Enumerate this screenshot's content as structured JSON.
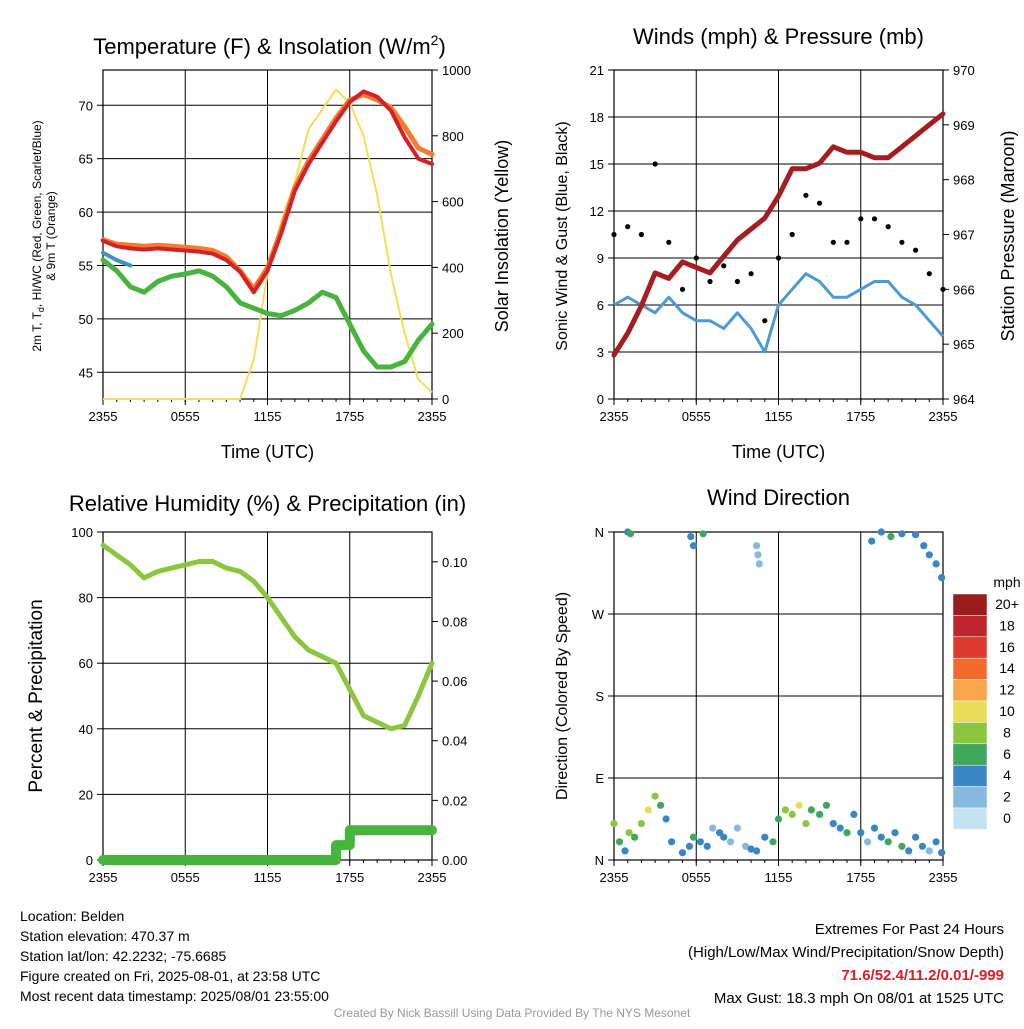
{
  "panels": {
    "temperature": {
      "title": "Temperature (F) & Insolation (W/m",
      "title_sup": "2",
      "title_close": ")",
      "ylabel_left_1": "2m T, T",
      "ylabel_left_sub": "d",
      "ylabel_left_2": ", HI/WC (Red, Green, Scarlet/Blue)",
      "ylabel_left_3": "& 9m T (Orange)",
      "ylabel_right": "Solar Insolation (Yellow)",
      "xlabel": "Time (UTC)",
      "xticks": [
        "2355",
        "0555",
        "1155",
        "1755",
        "2355"
      ],
      "yticks_left": [
        "45",
        "50",
        "55",
        "60",
        "65",
        "70"
      ],
      "yticks_right": [
        "0",
        "200",
        "400",
        "600",
        "800",
        "1000"
      ]
    },
    "winds": {
      "title": "Winds (mph) & Pressure (mb)",
      "ylabel_left": "Sonic Wind & Gust (Blue, Black)",
      "ylabel_right": "Station Pressure (Maroon)",
      "xlabel": "Time (UTC)",
      "xticks": [
        "2355",
        "0555",
        "1155",
        "1755",
        "2355"
      ],
      "yticks_left": [
        "0",
        "3",
        "6",
        "9",
        "12",
        "15",
        "18",
        "21"
      ],
      "yticks_right": [
        "964",
        "965",
        "966",
        "967",
        "968",
        "969",
        "970"
      ]
    },
    "humidity": {
      "title": "Relative Humidity (%) & Precipitation (in)",
      "ylabel_left": "Percent & Precipitation",
      "xticks": [
        "2355",
        "0555",
        "1155",
        "1755",
        "2355"
      ],
      "yticks_left": [
        "0",
        "20",
        "40",
        "60",
        "80",
        "100"
      ],
      "yticks_right": [
        "0.00",
        "0.02",
        "0.04",
        "0.06",
        "0.08",
        "0.10"
      ]
    },
    "direction": {
      "title": "Wind Direction",
      "ylabel_left": "Direction (Colored By Speed)",
      "xticks": [
        "2355",
        "0555",
        "1155",
        "1755",
        "2355"
      ],
      "yticks_left": [
        "N",
        "E",
        "S",
        "W",
        "N"
      ],
      "legend_title": "mph",
      "legend_labels": [
        "20+",
        "18",
        "16",
        "14",
        "12",
        "10",
        "8",
        "6",
        "4",
        "2",
        "0"
      ],
      "legend_colors": [
        "#9b1c1c",
        "#c0272d",
        "#de3a2f",
        "#f26b2d",
        "#f9a54a",
        "#e8de56",
        "#8cc63f",
        "#3fa85c",
        "#3a86c4",
        "#86b9e0",
        "#c4e2f4"
      ]
    }
  },
  "info": {
    "location": "Location: Belden",
    "elevation": "Station elevation: 470.37 m",
    "latlon": "Station lat/lon: 42.2232; -75.6685",
    "created": "Figure created on Fri, 2025-08-01, at 23:58 UTC",
    "recent": "Most recent data timestamp: 2025/08/01 23:55:00",
    "extremes_title": "Extremes For Past 24 Hours",
    "extremes_sub": "(High/Low/Max Wind/Precipitation/Snow Depth)",
    "extremes_values": "71.6/52.4/11.2/0.01/-999",
    "max_gust": "Max Gust: 18.3 mph On 08/01 at 1525 UTC",
    "credit": "Created By Nick Bassill Using Data Provided By The NYS Mesonet"
  },
  "colors": {
    "temp": "#d42027",
    "temp9m": "#f47c30",
    "dewpoint": "#46b43d",
    "windchill": "#4292c6",
    "solar": "#f6dd57",
    "wind": "#4a9ad4",
    "gust": "#000000",
    "pressure": "#a51d21",
    "rh": "#8cc63f",
    "precip": "#46b43d",
    "highlight": "#d42027"
  },
  "chart_data": [
    {
      "type": "line",
      "title": "Temperature (F) & Insolation (W/m2)",
      "xlabel": "Time (UTC)",
      "ylabel": "2m T, Td, HI/WC (Red, Green, Scarlet/Blue) & 9m T (Orange)",
      "ylabel_right": "Solar Insolation (Yellow)",
      "x": [
        0,
        1,
        2,
        3,
        4,
        5,
        6,
        7,
        8,
        9,
        10,
        11,
        12,
        13,
        14,
        15,
        16,
        17,
        18,
        19,
        20,
        21,
        22,
        23,
        24
      ],
      "xlim": [
        0,
        24
      ],
      "ylim": [
        42.5,
        73.3
      ],
      "ylim_right": [
        0,
        1000
      ],
      "series": [
        {
          "name": "2m T",
          "axis": "left",
          "values": [
            57.3,
            56.8,
            56.6,
            56.5,
            56.6,
            56.5,
            56.4,
            56.3,
            56.1,
            55.5,
            54.4,
            52.5,
            54.5,
            58.0,
            62.0,
            64.5,
            66.5,
            68.5,
            70.3,
            71.3,
            70.8,
            69.5,
            67.0,
            65.0,
            64.5
          ]
        },
        {
          "name": "9m T",
          "axis": "left",
          "values": [
            57.4,
            57.0,
            56.9,
            56.8,
            56.9,
            56.8,
            56.7,
            56.6,
            56.4,
            55.8,
            54.5,
            52.8,
            54.8,
            58.3,
            62.3,
            64.8,
            66.8,
            68.8,
            70.5,
            71.0,
            70.5,
            69.8,
            68.0,
            66.0,
            65.4
          ]
        },
        {
          "name": "Td",
          "axis": "left",
          "values": [
            55.5,
            54.5,
            53.0,
            52.5,
            53.5,
            54.0,
            54.2,
            54.5,
            54.0,
            53.0,
            51.5,
            51.0,
            50.5,
            50.3,
            50.8,
            51.5,
            52.5,
            52.0,
            49.5,
            47.0,
            45.5,
            45.5,
            46.0,
            48.0,
            49.5
          ]
        },
        {
          "name": "HI/WC",
          "axis": "left",
          "values": [
            56.2,
            55.5,
            55.0,
            null,
            55.3,
            null,
            null,
            null,
            null,
            null,
            null,
            52.0,
            null,
            null,
            null,
            null,
            null,
            null,
            null,
            null,
            null,
            null,
            null,
            null,
            null
          ]
        },
        {
          "name": "Solar Insolation",
          "axis": "right",
          "values": [
            0,
            0,
            0,
            0,
            0,
            0,
            0,
            0,
            0,
            0,
            0,
            120,
            380,
            540,
            660,
            820,
            880,
            940,
            900,
            800,
            620,
            380,
            200,
            60,
            20
          ]
        }
      ]
    },
    {
      "type": "line",
      "title": "Winds (mph) & Pressure (mb)",
      "xlabel": "Time (UTC)",
      "ylabel": "Sonic Wind & Gust (Blue, Black)",
      "ylabel_right": "Station Pressure (Maroon)",
      "x": [
        0,
        1,
        2,
        3,
        4,
        5,
        6,
        7,
        8,
        9,
        10,
        11,
        12,
        13,
        14,
        15,
        16,
        17,
        18,
        19,
        20,
        21,
        22,
        23,
        24
      ],
      "xlim": [
        0,
        24
      ],
      "ylim": [
        0,
        21
      ],
      "ylim_right": [
        964,
        970
      ],
      "series": [
        {
          "name": "Sonic Wind",
          "axis": "left",
          "values": [
            6.0,
            6.5,
            6.0,
            5.5,
            6.5,
            5.5,
            5.0,
            5.0,
            4.5,
            5.5,
            4.5,
            3.0,
            6.0,
            7.0,
            8.0,
            7.5,
            6.5,
            6.5,
            7.0,
            7.5,
            7.5,
            6.5,
            6.0,
            5.0,
            4.0
          ]
        },
        {
          "name": "Gust",
          "axis": "left",
          "values": [
            10.5,
            11.0,
            10.5,
            15.0,
            10.0,
            7.0,
            9.0,
            7.5,
            8.5,
            7.5,
            8.0,
            5.0,
            9.0,
            10.5,
            13.0,
            12.5,
            10.0,
            10.0,
            11.5,
            11.5,
            11.0,
            10.0,
            9.5,
            8.0,
            7.0
          ]
        },
        {
          "name": "Station Pressure",
          "axis": "right",
          "values": [
            964.8,
            965.2,
            965.7,
            966.3,
            966.2,
            966.5,
            966.4,
            966.3,
            966.6,
            966.9,
            967.1,
            967.3,
            967.7,
            968.2,
            968.2,
            968.3,
            968.6,
            968.5,
            968.5,
            968.4,
            968.4,
            968.6,
            968.8,
            969.0,
            969.2
          ]
        }
      ]
    },
    {
      "type": "line",
      "title": "Relative Humidity (%) & Precipitation (in)",
      "ylabel": "Percent & Precipitation",
      "x": [
        0,
        1,
        2,
        3,
        4,
        5,
        6,
        7,
        8,
        9,
        10,
        11,
        12,
        13,
        14,
        15,
        16,
        17,
        18,
        19,
        20,
        21,
        22,
        23,
        24
      ],
      "xlim": [
        0,
        24
      ],
      "ylim": [
        0,
        100
      ],
      "ylim_right": [
        0,
        0.11
      ],
      "series": [
        {
          "name": "Relative Humidity",
          "axis": "left",
          "values": [
            96,
            93,
            90,
            86,
            88,
            89,
            90,
            91,
            91,
            89,
            88,
            85,
            80,
            74,
            68,
            64,
            62,
            60,
            52,
            44,
            42,
            40,
            41,
            50,
            60
          ]
        },
        {
          "name": "Precipitation",
          "axis": "right",
          "values": [
            0,
            0,
            0,
            0,
            0,
            0,
            0,
            0,
            0,
            0,
            0,
            0,
            0,
            0,
            0,
            0,
            0,
            0.005,
            0.01,
            0.01,
            0.01,
            0.01,
            0.01,
            0.01,
            0.01
          ]
        }
      ]
    },
    {
      "type": "scatter",
      "title": "Wind Direction",
      "ylabel": "Direction (Colored By Speed)",
      "xlim": [
        0,
        24
      ],
      "ylim": [
        0,
        360
      ],
      "yticks": [
        "N",
        "E",
        "S",
        "W",
        "N"
      ],
      "x": [
        0.0,
        0.4,
        0.8,
        1.1,
        1.5,
        2.0,
        2.5,
        3.0,
        3.4,
        3.8,
        4.2,
        5.0,
        5.5,
        5.8,
        6.3,
        6.8,
        7.2,
        7.7,
        8.0,
        8.5,
        9.0,
        9.6,
        10.0,
        10.4,
        11.0,
        11.6,
        12.0,
        12.5,
        13.0,
        13.5,
        14.0,
        14.4,
        15.0,
        15.5,
        16.0,
        16.5,
        17.0,
        17.5,
        18.0,
        18.5,
        19.0,
        19.5,
        20.0,
        20.5,
        21.0,
        21.5,
        22.0,
        22.5,
        23.0,
        23.5,
        23.9,
        1.0,
        1.2,
        5.6,
        5.8,
        6.5,
        10.4,
        10.5,
        10.6,
        18.8,
        19.5,
        20.2,
        21.0,
        22.0,
        22.6,
        23.0,
        23.5,
        23.9
      ],
      "y": [
        40,
        20,
        10,
        30,
        25,
        40,
        55,
        70,
        60,
        45,
        20,
        8,
        15,
        25,
        20,
        15,
        35,
        30,
        25,
        20,
        35,
        15,
        12,
        10,
        25,
        20,
        45,
        55,
        50,
        60,
        40,
        55,
        50,
        60,
        40,
        35,
        30,
        50,
        30,
        20,
        35,
        25,
        20,
        30,
        15,
        10,
        25,
        15,
        10,
        20,
        8,
        360,
        358,
        355,
        345,
        358,
        345,
        335,
        325,
        350,
        360,
        355,
        358,
        357,
        345,
        335,
        325,
        310
      ],
      "speed": [
        8,
        6,
        4,
        8,
        6,
        8,
        10,
        8,
        6,
        4,
        4,
        4,
        4,
        6,
        4,
        4,
        2,
        4,
        4,
        2,
        2,
        2,
        4,
        4,
        4,
        6,
        6,
        8,
        8,
        10,
        8,
        6,
        6,
        6,
        4,
        4,
        6,
        4,
        4,
        2,
        4,
        4,
        6,
        4,
        6,
        4,
        4,
        4,
        2,
        4,
        4,
        4,
        6,
        4,
        4,
        6,
        2,
        2,
        2,
        4,
        4,
        6,
        4,
        4,
        4,
        4,
        4,
        4
      ]
    }
  ]
}
